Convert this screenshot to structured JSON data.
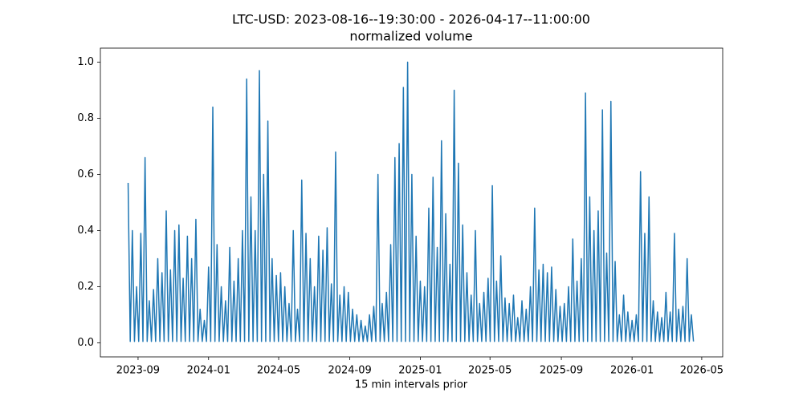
{
  "chart_data": {
    "type": "line",
    "title": "LTC-USD: 2023-08-16--19:30:00 - 2026-04-17--11:00:00",
    "subtitle": "normalized volume",
    "x_label": "15 min intervals prior",
    "color": "#1f77b4",
    "xlim": [
      2023.489,
      2026.428
    ],
    "ylim": [
      -0.05,
      1.05
    ],
    "xticks": [
      {
        "value": 2023.667,
        "label": "2023-09"
      },
      {
        "value": 2024.0,
        "label": "2024-01"
      },
      {
        "value": 2024.331,
        "label": "2024-05"
      },
      {
        "value": 2024.667,
        "label": "2024-09"
      },
      {
        "value": 2025.0,
        "label": "2025-01"
      },
      {
        "value": 2025.329,
        "label": "2025-05"
      },
      {
        "value": 2025.666,
        "label": "2025-09"
      },
      {
        "value": 2026.0,
        "label": "2026-01"
      },
      {
        "value": 2026.329,
        "label": "2026-05"
      }
    ],
    "yticks": [
      {
        "value": 0,
        "label": "0.0"
      },
      0.2,
      0.4,
      0.6,
      0.8,
      {
        "value": 1,
        "label": "1.0"
      }
    ],
    "grid": false,
    "x": [
      2023.62,
      2023.63,
      2023.64,
      2023.65,
      2023.66,
      2023.67,
      2023.68,
      2023.69,
      2023.7,
      2023.71,
      2023.72,
      2023.73,
      2023.74,
      2023.75,
      2023.76,
      2023.77,
      2023.78,
      2023.79,
      2023.8,
      2023.81,
      2023.82,
      2023.83,
      2023.84,
      2023.85,
      2023.86,
      2023.87,
      2023.88,
      2023.89,
      2023.9,
      2023.91,
      2023.92,
      2023.93,
      2023.94,
      2023.95,
      2023.96,
      2023.97,
      2023.98,
      2023.99,
      2024.0,
      2024.01,
      2024.02,
      2024.03,
      2024.04,
      2024.05,
      2024.06,
      2024.07,
      2024.08,
      2024.09,
      2024.1,
      2024.11,
      2024.12,
      2024.13,
      2024.14,
      2024.15,
      2024.16,
      2024.17,
      2024.18,
      2024.19,
      2024.2,
      2024.21,
      2024.22,
      2024.23,
      2024.24,
      2024.25,
      2024.26,
      2024.27,
      2024.28,
      2024.29,
      2024.3,
      2024.31,
      2024.32,
      2024.33,
      2024.34,
      2024.35,
      2024.36,
      2024.37,
      2024.38,
      2024.39,
      2024.4,
      2024.41,
      2024.42,
      2024.43,
      2024.44,
      2024.45,
      2024.46,
      2024.47,
      2024.48,
      2024.49,
      2024.5,
      2024.51,
      2024.52,
      2024.53,
      2024.54,
      2024.55,
      2024.56,
      2024.57,
      2024.58,
      2024.59,
      2024.6,
      2024.61,
      2024.62,
      2024.63,
      2024.64,
      2024.65,
      2024.66,
      2024.67,
      2024.68,
      2024.69,
      2024.7,
      2024.71,
      2024.72,
      2024.73,
      2024.74,
      2024.75,
      2024.76,
      2024.77,
      2024.78,
      2024.79,
      2024.8,
      2024.81,
      2024.82,
      2024.83,
      2024.84,
      2024.85,
      2024.86,
      2024.87,
      2024.88,
      2024.89,
      2024.9,
      2024.91,
      2024.92,
      2024.93,
      2024.94,
      2024.95,
      2024.96,
      2024.97,
      2024.98,
      2024.99,
      2025.0,
      2025.01,
      2025.02,
      2025.03,
      2025.04,
      2025.05,
      2025.06,
      2025.07,
      2025.08,
      2025.09,
      2025.1,
      2025.11,
      2025.12,
      2025.13,
      2025.14,
      2025.15,
      2025.16,
      2025.17,
      2025.18,
      2025.19,
      2025.2,
      2025.21,
      2025.22,
      2025.23,
      2025.24,
      2025.25,
      2025.26,
      2025.27,
      2025.28,
      2025.29,
      2025.3,
      2025.31,
      2025.32,
      2025.33,
      2025.34,
      2025.35,
      2025.36,
      2025.37,
      2025.38,
      2025.39,
      2025.4,
      2025.41,
      2025.42,
      2025.43,
      2025.44,
      2025.45,
      2025.46,
      2025.47,
      2025.48,
      2025.49,
      2025.5,
      2025.51,
      2025.52,
      2025.53,
      2025.54,
      2025.55,
      2025.56,
      2025.57,
      2025.58,
      2025.59,
      2025.6,
      2025.61,
      2025.62,
      2025.63,
      2025.64,
      2025.65,
      2025.66,
      2025.67,
      2025.68,
      2025.69,
      2025.7,
      2025.71,
      2025.72,
      2025.73,
      2025.74,
      2025.75,
      2025.76,
      2025.77,
      2025.78,
      2025.79,
      2025.8,
      2025.81,
      2025.82,
      2025.83,
      2025.84,
      2025.85,
      2025.86,
      2025.87,
      2025.88,
      2025.89,
      2025.9,
      2025.91,
      2025.92,
      2025.93,
      2025.94,
      2025.95,
      2025.96,
      2025.97,
      2025.98,
      2025.99,
      2026.0,
      2026.01,
      2026.02,
      2026.03,
      2026.04,
      2026.05,
      2026.06,
      2026.07,
      2026.08,
      2026.09,
      2026.1,
      2026.11,
      2026.12,
      2026.13,
      2026.14,
      2026.15,
      2026.16,
      2026.17,
      2026.18,
      2026.19,
      2026.2,
      2026.21,
      2026.22,
      2026.23,
      2026.24,
      2026.25,
      2026.26,
      2026.27,
      2026.28,
      2026.29
    ],
    "values": [
      0.57,
      0.005,
      0.4,
      0.005,
      0.2,
      0.005,
      0.39,
      0.005,
      0.66,
      0.005,
      0.15,
      0.005,
      0.19,
      0.005,
      0.3,
      0.005,
      0.25,
      0.005,
      0.47,
      0.005,
      0.26,
      0.005,
      0.4,
      0.005,
      0.42,
      0.005,
      0.23,
      0.005,
      0.38,
      0.005,
      0.3,
      0.005,
      0.44,
      0.005,
      0.12,
      0.005,
      0.08,
      0.005,
      0.27,
      0.005,
      0.84,
      0.005,
      0.35,
      0.005,
      0.2,
      0.005,
      0.15,
      0.005,
      0.34,
      0.005,
      0.22,
      0.005,
      0.3,
      0.005,
      0.4,
      0.005,
      0.94,
      0.005,
      0.52,
      0.005,
      0.4,
      0.005,
      0.97,
      0.005,
      0.6,
      0.005,
      0.79,
      0.005,
      0.3,
      0.005,
      0.24,
      0.005,
      0.25,
      0.005,
      0.2,
      0.005,
      0.14,
      0.005,
      0.4,
      0.005,
      0.12,
      0.005,
      0.58,
      0.005,
      0.39,
      0.005,
      0.3,
      0.005,
      0.2,
      0.005,
      0.38,
      0.005,
      0.33,
      0.005,
      0.41,
      0.005,
      0.21,
      0.005,
      0.68,
      0.005,
      0.17,
      0.005,
      0.2,
      0.005,
      0.18,
      0.005,
      0.12,
      0.005,
      0.1,
      0.005,
      0.08,
      0.005,
      0.06,
      0.005,
      0.1,
      0.005,
      0.13,
      0.005,
      0.6,
      0.005,
      0.14,
      0.005,
      0.18,
      0.005,
      0.35,
      0.005,
      0.66,
      0.005,
      0.71,
      0.005,
      0.91,
      0.005,
      1.0,
      0.005,
      0.6,
      0.005,
      0.38,
      0.005,
      0.22,
      0.005,
      0.2,
      0.005,
      0.48,
      0.005,
      0.59,
      0.005,
      0.34,
      0.005,
      0.72,
      0.005,
      0.46,
      0.005,
      0.28,
      0.005,
      0.9,
      0.005,
      0.64,
      0.005,
      0.42,
      0.005,
      0.25,
      0.005,
      0.17,
      0.005,
      0.4,
      0.005,
      0.14,
      0.005,
      0.18,
      0.005,
      0.23,
      0.005,
      0.56,
      0.005,
      0.22,
      0.005,
      0.31,
      0.005,
      0.16,
      0.005,
      0.14,
      0.005,
      0.17,
      0.005,
      0.09,
      0.005,
      0.15,
      0.005,
      0.12,
      0.005,
      0.2,
      0.005,
      0.48,
      0.005,
      0.26,
      0.005,
      0.28,
      0.005,
      0.25,
      0.005,
      0.27,
      0.005,
      0.19,
      0.005,
      0.13,
      0.005,
      0.14,
      0.005,
      0.2,
      0.005,
      0.37,
      0.005,
      0.22,
      0.005,
      0.3,
      0.005,
      0.89,
      0.005,
      0.52,
      0.005,
      0.4,
      0.005,
      0.47,
      0.005,
      0.83,
      0.005,
      0.32,
      0.005,
      0.86,
      0.005,
      0.29,
      0.005,
      0.1,
      0.005,
      0.17,
      0.005,
      0.11,
      0.005,
      0.08,
      0.005,
      0.1,
      0.005,
      0.61,
      0.005,
      0.39,
      0.005,
      0.52,
      0.005,
      0.15,
      0.005,
      0.11,
      0.005,
      0.09,
      0.005,
      0.18,
      0.005,
      0.11,
      0.005,
      0.39,
      0.005,
      0.12,
      0.005,
      0.13,
      0.005,
      0.3,
      0.005,
      0.1,
      0.005
    ]
  }
}
